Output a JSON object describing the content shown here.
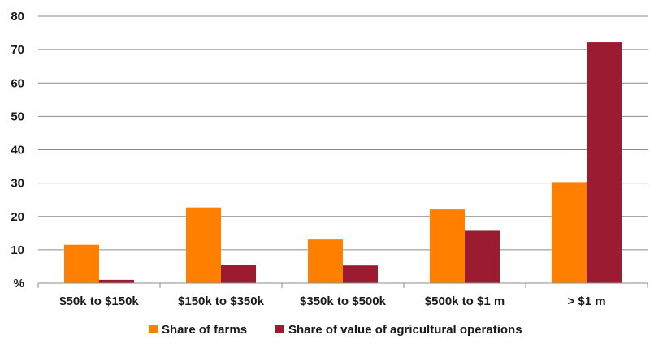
{
  "chart_data": {
    "type": "bar",
    "title": "",
    "xlabel": "",
    "ylabel": "",
    "y_ticks": [
      "%",
      "10",
      "20",
      "30",
      "40",
      "50",
      "60",
      "70",
      "80"
    ],
    "ylim": [
      0,
      80
    ],
    "grid": true,
    "legend_placement": "bottom",
    "categories": [
      "$50k to $150k",
      "$150k to $350k",
      "$350k to $500k",
      "$500k to $1 m",
      "> $1 m"
    ],
    "series": [
      {
        "name": "Share of farms",
        "color": "#FF7F00",
        "values": [
          11.5,
          22.7,
          13.1,
          22.1,
          30.3
        ]
      },
      {
        "name": "Share of value of agricultural operations",
        "color": "#9B1B30",
        "values": [
          1.0,
          5.5,
          5.3,
          15.7,
          72.2
        ]
      }
    ]
  }
}
